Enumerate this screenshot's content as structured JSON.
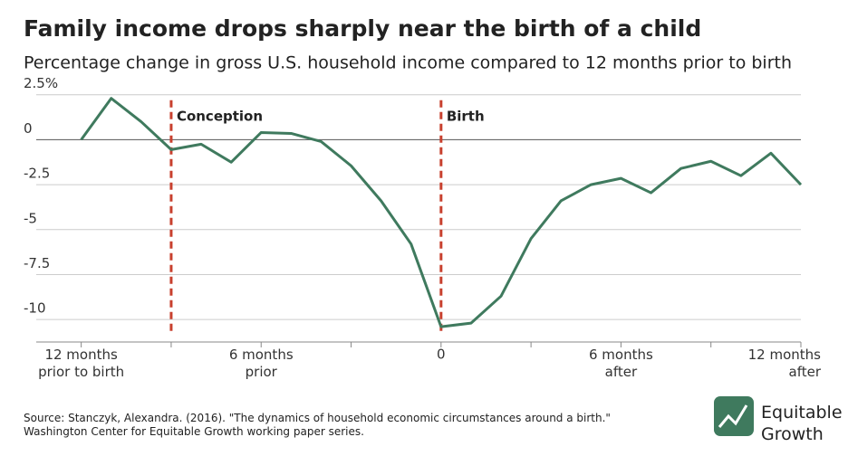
{
  "chart_data": {
    "type": "line",
    "title": "Family income drops sharply near the birth of a child",
    "subtitle": "Percentage change in gross U.S. household income compared to 12 months prior to birth",
    "x": [
      -12,
      -11,
      -10,
      -9,
      -8,
      -7,
      -6,
      -5,
      -4,
      -3,
      -2,
      -1,
      0,
      1,
      2,
      3,
      4,
      5,
      6,
      7,
      8,
      9,
      10,
      11,
      12
    ],
    "series": [
      {
        "name": "Household income",
        "color": "#3f7a5e",
        "values": [
          0,
          2.3,
          1.0,
          -0.55,
          -0.25,
          -1.25,
          0.4,
          0.35,
          -0.1,
          -1.45,
          -3.4,
          -5.8,
          -10.4,
          -10.2,
          -8.7,
          -5.5,
          -3.4,
          -2.5,
          -2.15,
          -2.95,
          -1.6,
          -1.2,
          -2.0,
          -0.75,
          -2.5
        ]
      }
    ],
    "xlim": [
      -13.5,
      12
    ],
    "ylim": [
      -11.25,
      3
    ],
    "xticks": [
      {
        "value": -12,
        "label": "12 months\nprior to birth"
      },
      {
        "value": -6,
        "label": "6 months\nprior"
      },
      0,
      {
        "value": 6,
        "label": "6 months\nafter"
      },
      {
        "value": 12,
        "label": "12 months\nafter"
      }
    ],
    "minor_xticks": [
      -9,
      -3,
      3,
      9
    ],
    "yticks": [
      {
        "value": 2.5,
        "label": "2.5%"
      },
      0,
      -2.5,
      -5,
      -7.5,
      -10
    ],
    "grid": true,
    "annotations": [
      {
        "x": -9,
        "text": "Conception",
        "color": "#c8402e"
      },
      {
        "x": 0,
        "text": "Birth",
        "color": "#c8402e"
      }
    ],
    "source": "Source: Stanczyk, Alexandra. (2016). \"The dynamics of household economic circumstances around a birth.\"\nWashington Center for Equitable Growth working paper series.",
    "logo": "Equitable\nGrowth"
  }
}
